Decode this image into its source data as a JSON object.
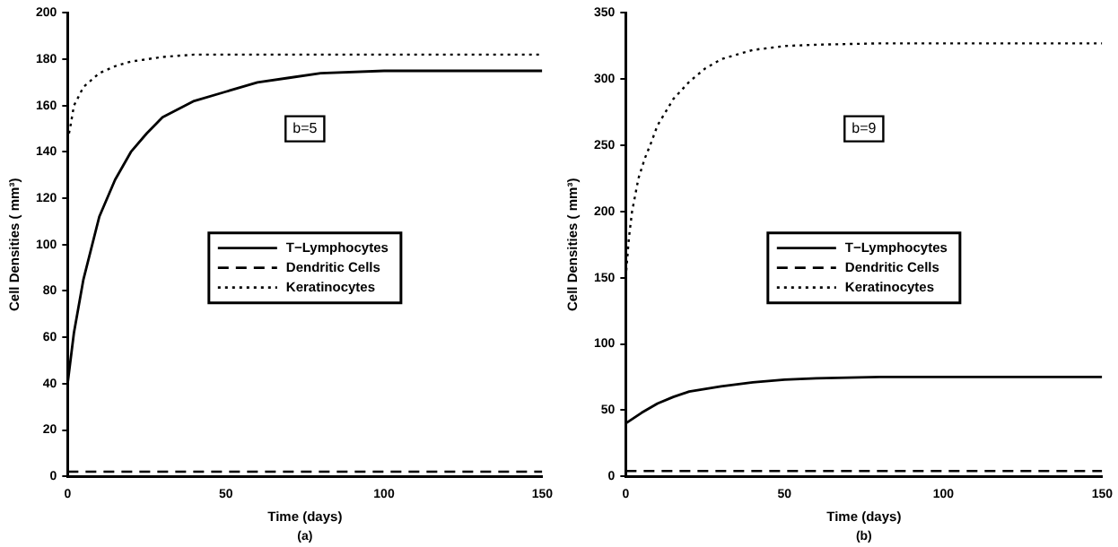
{
  "chart_data": [
    {
      "type": "line",
      "xlabel": "Time (days)",
      "ylabel": "Cell Densities ( mm³)",
      "annotations": [
        "b=5",
        "(a)"
      ],
      "xlim": [
        0,
        150
      ],
      "xticks": [
        0,
        50,
        100,
        150
      ],
      "ylim": [
        0,
        200
      ],
      "yticks": [
        0,
        20,
        40,
        60,
        80,
        100,
        120,
        140,
        160,
        180,
        200
      ],
      "grid": false,
      "legend": "center",
      "marker": "none",
      "series": [
        {
          "name": "T−Lymphocytes",
          "color": "#000000",
          "line_style": "solid",
          "x": [
            0,
            2,
            5,
            10,
            15,
            20,
            25,
            30,
            40,
            50,
            60,
            70,
            80,
            100,
            120,
            150
          ],
          "values": [
            40,
            62,
            85,
            112,
            128,
            140,
            148,
            155,
            162,
            166,
            170,
            172,
            174,
            175,
            175,
            175
          ]
        },
        {
          "name": "Dendritic Cells",
          "color": "#000000",
          "line_style": "dashed",
          "x": [
            0,
            150
          ],
          "values": [
            2,
            2
          ]
        },
        {
          "name": "Keratinocytes",
          "color": "#000000",
          "line_style": "dotted",
          "x": [
            0,
            1,
            2,
            5,
            10,
            15,
            20,
            30,
            40,
            60,
            100,
            150
          ],
          "values": [
            145,
            152,
            160,
            168,
            174,
            177,
            179,
            181,
            182,
            182,
            182,
            182
          ]
        }
      ]
    },
    {
      "type": "line",
      "xlabel": "Time (days)",
      "ylabel": "Cell Densities ( mm³)",
      "annotations": [
        "b=9",
        "(b)"
      ],
      "xlim": [
        0,
        150
      ],
      "xticks": [
        0,
        50,
        100,
        150
      ],
      "ylim": [
        0,
        350
      ],
      "yticks": [
        0,
        50,
        100,
        150,
        200,
        250,
        300,
        350
      ],
      "grid": false,
      "legend": "center",
      "marker": "none",
      "series": [
        {
          "name": "T−Lymphocytes",
          "color": "#000000",
          "line_style": "solid",
          "x": [
            0,
            5,
            10,
            15,
            20,
            30,
            40,
            50,
            60,
            80,
            100,
            150
          ],
          "values": [
            40,
            48,
            55,
            60,
            64,
            68,
            71,
            73,
            74,
            75,
            75,
            75
          ]
        },
        {
          "name": "Dendritic Cells",
          "color": "#000000",
          "line_style": "dashed",
          "x": [
            0,
            150
          ],
          "values": [
            4,
            4
          ]
        },
        {
          "name": "Keratinocytes",
          "color": "#000000",
          "line_style": "dotted",
          "x": [
            0,
            1,
            2,
            4,
            6,
            8,
            10,
            15,
            20,
            25,
            30,
            40,
            50,
            60,
            80,
            150
          ],
          "values": [
            150,
            180,
            200,
            225,
            240,
            252,
            265,
            285,
            298,
            308,
            315,
            322,
            325,
            326,
            327,
            327
          ]
        }
      ]
    }
  ]
}
